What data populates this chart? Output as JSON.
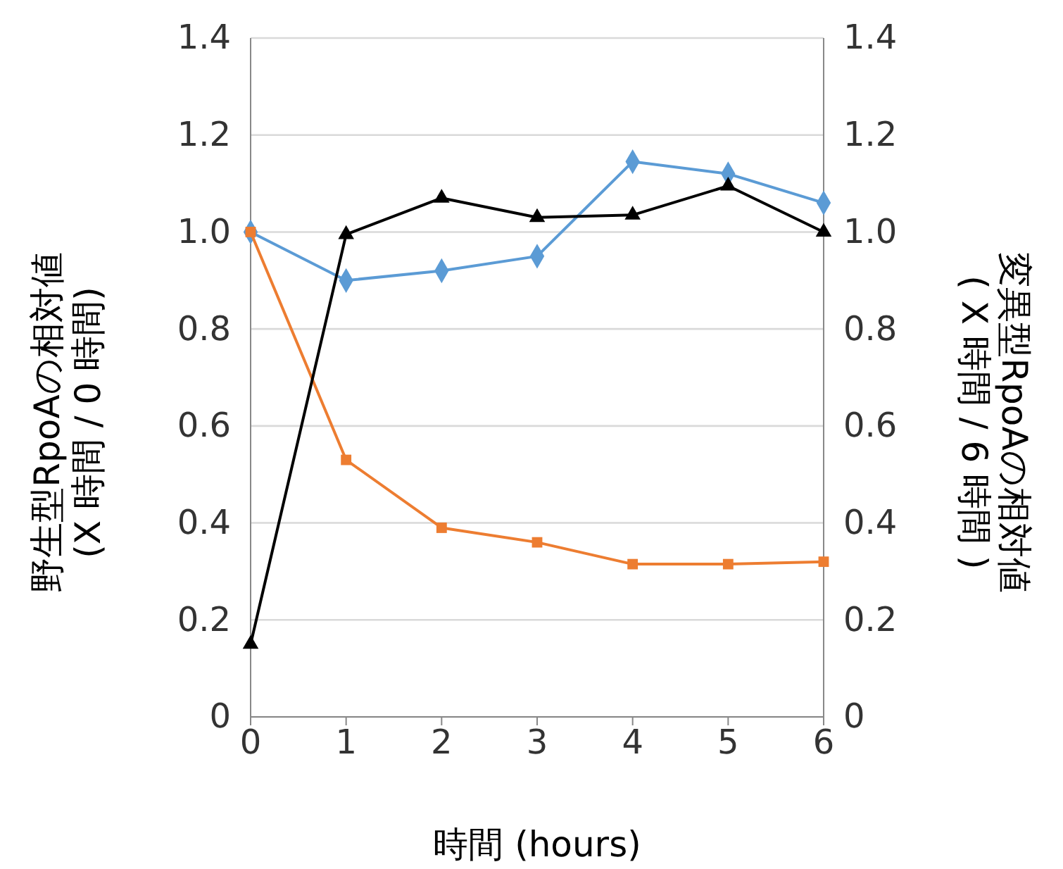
{
  "chart_data": {
    "type": "line",
    "xlabel": "時間 (hours)",
    "ylabel": "野生型RpoAの相対値\n(X 時間 / 0 時間)",
    "y2label": "変異型RpoAの相対値\n( X 時間 / 6 時間 )",
    "x": [
      0,
      1,
      2,
      3,
      4,
      5,
      6
    ],
    "xlim": [
      0,
      6
    ],
    "xticks": [
      0,
      1,
      2,
      3,
      4,
      5,
      6
    ],
    "ylim": [
      0,
      1.4
    ],
    "yticks": [
      {
        "value": 0,
        "label": "0"
      },
      {
        "value": 0.2,
        "label": "0.2"
      },
      {
        "value": 0.4,
        "label": "0.4"
      },
      {
        "value": 0.6,
        "label": "0.6"
      },
      {
        "value": 0.8,
        "label": "0.8"
      },
      {
        "value": 1,
        "label": "1.0"
      },
      {
        "value": 1.2,
        "label": "1.2"
      },
      {
        "value": 1.4,
        "label": "1.4"
      }
    ],
    "y2lim": [
      0,
      1.4
    ],
    "y2ticks": [
      {
        "value": 0,
        "label": "0"
      },
      {
        "value": 0.2,
        "label": "0.2"
      },
      {
        "value": 0.4,
        "label": "0.4"
      },
      {
        "value": 0.6,
        "label": "0.6"
      },
      {
        "value": 0.8,
        "label": "0.8"
      },
      {
        "value": 1,
        "label": "1.0"
      },
      {
        "value": 1.2,
        "label": "1.2"
      },
      {
        "value": 1.4,
        "label": "1.4"
      }
    ],
    "grid": "y",
    "series": [
      {
        "color": "#5b9bd5",
        "marker": "diamond",
        "values": [
          1.0,
          0.9,
          0.92,
          0.95,
          1.145,
          1.12,
          1.06
        ]
      },
      {
        "color": "#ed7d31",
        "marker": "square",
        "values": [
          1.0,
          0.53,
          0.39,
          0.36,
          0.315,
          0.315,
          0.32
        ]
      },
      {
        "color": "#000000",
        "marker": "triangle",
        "values": [
          0.15,
          0.995,
          1.07,
          1.03,
          1.035,
          1.095,
          1.0
        ]
      }
    ]
  }
}
